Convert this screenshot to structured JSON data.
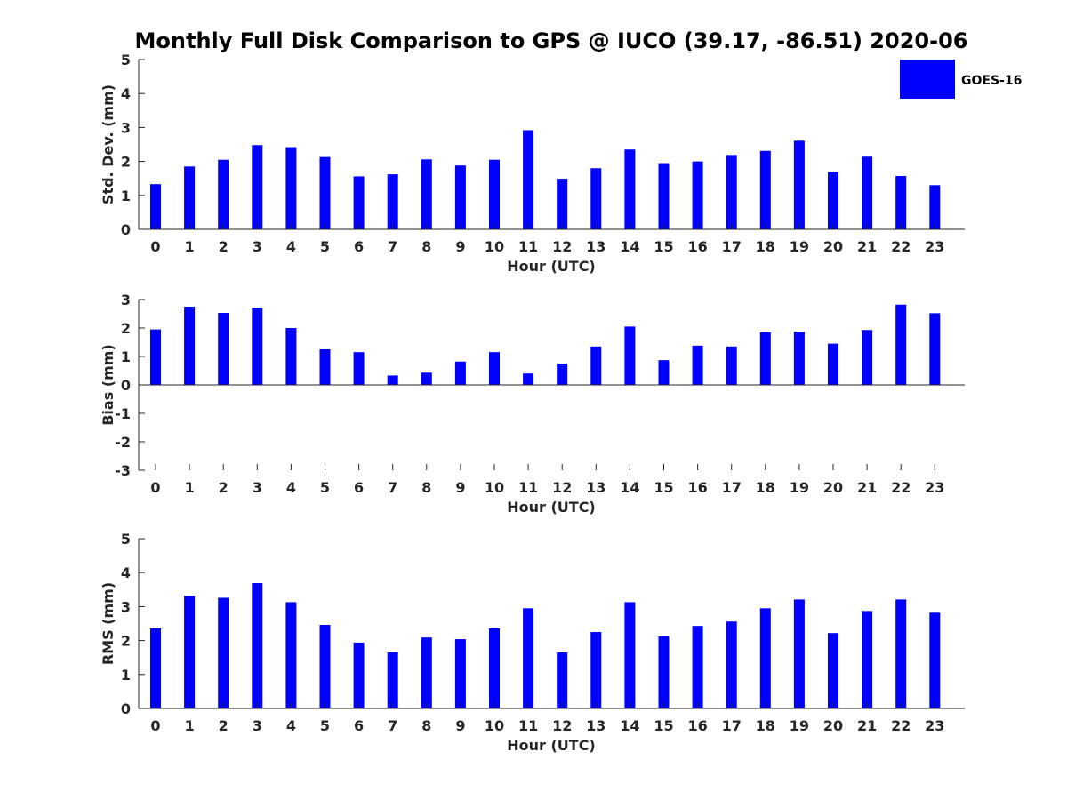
{
  "figure": {
    "title": "Monthly Full Disk Comparison to GPS @ IUCO (39.17, -86.51) 2020-06",
    "legend": {
      "label": "GOES-16",
      "color": "#0000ff",
      "placement": "top-right"
    }
  },
  "chart_data": [
    {
      "type": "bar",
      "categories": [
        "0",
        "1",
        "2",
        "3",
        "4",
        "5",
        "6",
        "7",
        "8",
        "9",
        "10",
        "11",
        "12",
        "13",
        "14",
        "15",
        "16",
        "17",
        "18",
        "19",
        "20",
        "21",
        "22",
        "23"
      ],
      "series": [
        {
          "name": "GOES-16",
          "color": "#0000ff",
          "values": [
            1.33,
            1.85,
            2.05,
            2.48,
            2.42,
            2.13,
            1.56,
            1.62,
            2.06,
            1.88,
            2.05,
            2.92,
            1.49,
            1.8,
            2.35,
            1.95,
            2.0,
            2.19,
            2.31,
            2.61,
            1.69,
            2.14,
            1.57,
            1.3
          ]
        }
      ],
      "xlabel": "Hour (UTC)",
      "ylabel": "Std. Dev. (mm)",
      "ylim": [
        0,
        5
      ],
      "yticks": [
        "0",
        "1",
        "2",
        "3",
        "4",
        "5"
      ],
      "grid": false
    },
    {
      "type": "bar",
      "categories": [
        "0",
        "1",
        "2",
        "3",
        "4",
        "5",
        "6",
        "7",
        "8",
        "9",
        "10",
        "11",
        "12",
        "13",
        "14",
        "15",
        "16",
        "17",
        "18",
        "19",
        "20",
        "21",
        "22",
        "23"
      ],
      "series": [
        {
          "name": "GOES-16",
          "color": "#0000ff",
          "values": [
            1.95,
            2.75,
            2.53,
            2.72,
            2.0,
            1.25,
            1.15,
            0.33,
            0.43,
            0.82,
            1.15,
            0.4,
            0.75,
            1.35,
            2.05,
            0.87,
            1.38,
            1.35,
            1.85,
            1.87,
            1.45,
            1.93,
            2.82,
            2.52
          ]
        }
      ],
      "xlabel": "Hour (UTC)",
      "ylabel": "Bias (mm)",
      "ylim": [
        -3,
        3
      ],
      "yticks": [
        "-3",
        "-2",
        "-1",
        "0",
        "1",
        "2",
        "3"
      ],
      "grid": false
    },
    {
      "type": "bar",
      "categories": [
        "0",
        "1",
        "2",
        "3",
        "4",
        "5",
        "6",
        "7",
        "8",
        "9",
        "10",
        "11",
        "12",
        "13",
        "14",
        "15",
        "16",
        "17",
        "18",
        "19",
        "20",
        "21",
        "22",
        "23"
      ],
      "series": [
        {
          "name": "GOES-16",
          "color": "#0000ff",
          "values": [
            2.36,
            3.32,
            3.26,
            3.69,
            3.13,
            2.46,
            1.94,
            1.65,
            2.09,
            2.04,
            2.36,
            2.95,
            1.65,
            2.25,
            3.13,
            2.12,
            2.43,
            2.56,
            2.95,
            3.21,
            2.22,
            2.87,
            3.21,
            2.82
          ]
        }
      ],
      "xlabel": "Hour (UTC)",
      "ylabel": "RMS (mm)",
      "ylim": [
        0,
        5
      ],
      "yticks": [
        "0",
        "1",
        "2",
        "3",
        "4",
        "5"
      ],
      "grid": false
    }
  ]
}
